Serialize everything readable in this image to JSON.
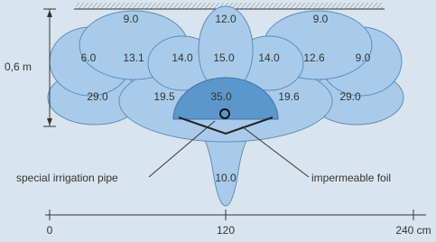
{
  "depth_label": "0,6 m",
  "zones": {
    "top": [
      "9.0",
      "12.0",
      "9.0"
    ],
    "middle": [
      "6.0",
      "13.1",
      "14.0",
      "15.0",
      "14.0",
      "12.6",
      "9.0"
    ],
    "lower": [
      "29.0",
      "19.5",
      "35.0",
      "19.6",
      "29.0"
    ],
    "bottom": "10.0"
  },
  "callouts": {
    "pipe": "special irrigation pipe",
    "foil": "impermeable foil"
  },
  "axis": [
    "0",
    "120",
    "240 cm"
  ]
}
